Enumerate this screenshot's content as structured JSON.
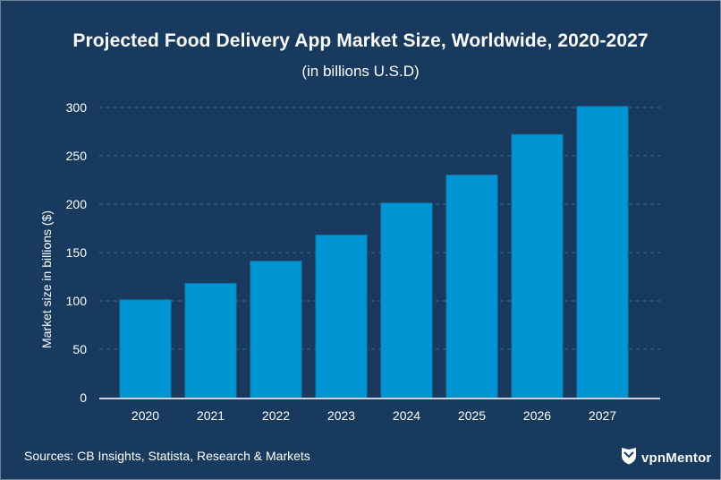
{
  "header": {
    "title": "Projected Food Delivery App Market Size, Worldwide, 2020-2027",
    "subtitle": "(in billions U.S.D)"
  },
  "footer": {
    "sources": "Sources: CB Insights, Statista, Research & Markets",
    "brand": "vpnMentor",
    "brand_icon": "shield-icon"
  },
  "colors": {
    "background": "#173a5e",
    "bar": "#0195d3",
    "grid": "#3f6a8a",
    "axis": "#c9d6e2",
    "text": "#ffffff"
  },
  "chart_data": {
    "type": "bar",
    "title": "Projected Food Delivery App Market Size, Worldwide, 2020-2027",
    "subtitle": "(in billions U.S.D)",
    "xlabel": "",
    "ylabel": "Market size in billions ($)",
    "categories": [
      "2020",
      "2021",
      "2022",
      "2023",
      "2024",
      "2025",
      "2026",
      "2027"
    ],
    "values": [
      101,
      118,
      141,
      168,
      201,
      230,
      272,
      301
    ],
    "ylim": [
      0,
      300
    ],
    "yticks": [
      "0",
      "50",
      "100",
      "150",
      "200",
      "250",
      "300"
    ],
    "ytick_values": [
      0,
      50,
      100,
      150,
      200,
      250,
      300
    ],
    "grid": true,
    "legend": "none"
  }
}
